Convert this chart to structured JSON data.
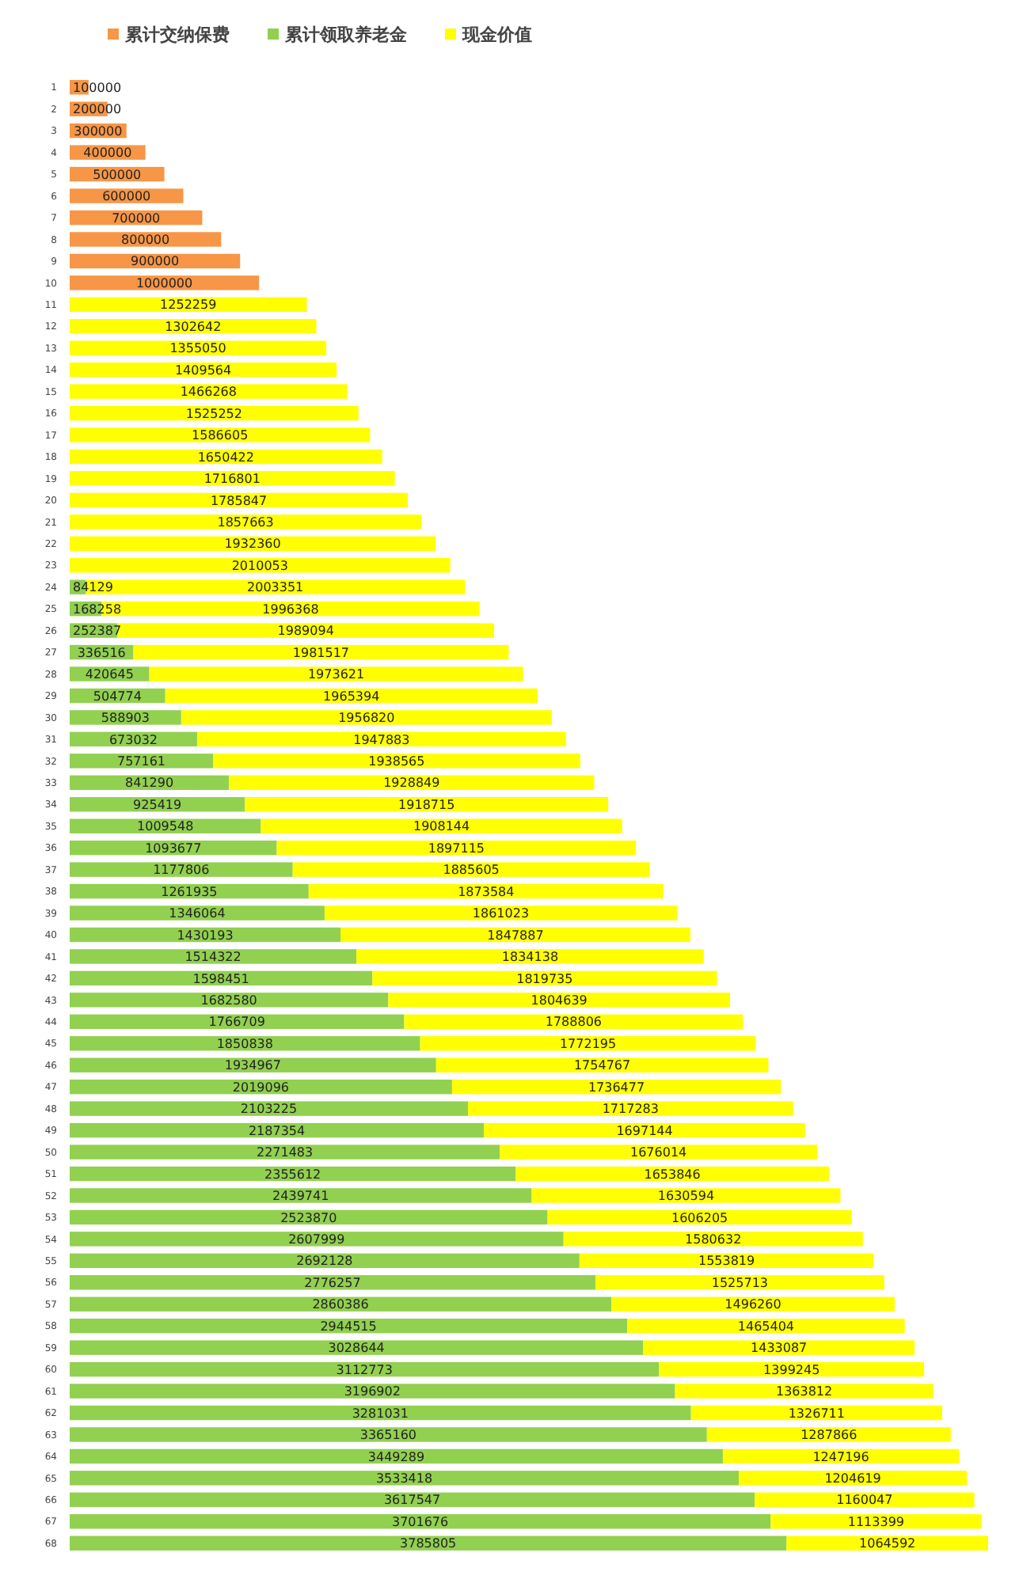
{
  "chart_data": {
    "type": "bar",
    "orientation": "horizontal",
    "stacked": true,
    "data_labels": true,
    "legend": "top left",
    "grid": false,
    "tick_labels": "y",
    "categories": [
      "1",
      "2",
      "3",
      "4",
      "5",
      "6",
      "7",
      "8",
      "9",
      "10",
      "11",
      "12",
      "13",
      "14",
      "15",
      "16",
      "17",
      "18",
      "19",
      "20",
      "21",
      "22",
      "23",
      "24",
      "25",
      "26",
      "27",
      "28",
      "29",
      "30",
      "31",
      "32",
      "33",
      "34",
      "35",
      "36",
      "37",
      "38",
      "39",
      "40",
      "41",
      "42",
      "43",
      "44",
      "45",
      "46",
      "47",
      "48",
      "49",
      "50",
      "51",
      "52",
      "53",
      "54",
      "55",
      "56",
      "57",
      "58",
      "59",
      "60",
      "61",
      "62",
      "63",
      "64",
      "65",
      "66",
      "67",
      "68"
    ],
    "series": [
      {
        "name": "累计交纳保费",
        "color": "#f79646",
        "values": [
          100000,
          200000,
          300000,
          400000,
          500000,
          600000,
          700000,
          800000,
          900000,
          1000000,
          null,
          null,
          null,
          null,
          null,
          null,
          null,
          null,
          null,
          null,
          null,
          null,
          null,
          null,
          null,
          null,
          null,
          null,
          null,
          null,
          null,
          null,
          null,
          null,
          null,
          null,
          null,
          null,
          null,
          null,
          null,
          null,
          null,
          null,
          null,
          null,
          null,
          null,
          null,
          null,
          null,
          null,
          null,
          null,
          null,
          null,
          null,
          null,
          null,
          null,
          null,
          null,
          null,
          null,
          null,
          null,
          null,
          null
        ]
      },
      {
        "name": "累计领取养老金",
        "color": "#92d050",
        "values": [
          null,
          null,
          null,
          null,
          null,
          null,
          null,
          null,
          null,
          null,
          null,
          null,
          null,
          null,
          null,
          null,
          null,
          null,
          null,
          null,
          null,
          null,
          null,
          84129,
          168258,
          252387,
          336516,
          420645,
          504774,
          588903,
          673032,
          757161,
          841290,
          925419,
          1009548,
          1093677,
          1177806,
          1261935,
          1346064,
          1430193,
          1514322,
          1598451,
          1682580,
          1766709,
          1850838,
          1934967,
          2019096,
          2103225,
          2187354,
          2271483,
          2355612,
          2439741,
          2523870,
          2607999,
          2692128,
          2776257,
          2860386,
          2944515,
          3028644,
          3112773,
          3196902,
          3281031,
          3365160,
          3449289,
          3533418,
          3617547,
          3701676,
          3785805
        ]
      },
      {
        "name": "现金价值",
        "color": "#ffff00",
        "values": [
          null,
          null,
          null,
          null,
          null,
          null,
          null,
          null,
          null,
          null,
          1252259,
          1302642,
          1355050,
          1409564,
          1466268,
          1525252,
          1586605,
          1650422,
          1716801,
          1785847,
          1857663,
          1932360,
          2010053,
          2003351,
          1996368,
          1989094,
          1981517,
          1973621,
          1965394,
          1956820,
          1947883,
          1938565,
          1928849,
          1918715,
          1908144,
          1897115,
          1885605,
          1873584,
          1861023,
          1847887,
          1834138,
          1819735,
          1804639,
          1788806,
          1772195,
          1754767,
          1736477,
          1717283,
          1697144,
          1676014,
          1653846,
          1630594,
          1606205,
          1580632,
          1553819,
          1525713,
          1496260,
          1465404,
          1433087,
          1399245,
          1363812,
          1326711,
          1287866,
          1247196,
          1204619,
          1160047,
          1113399,
          1064592
        ]
      }
    ]
  }
}
